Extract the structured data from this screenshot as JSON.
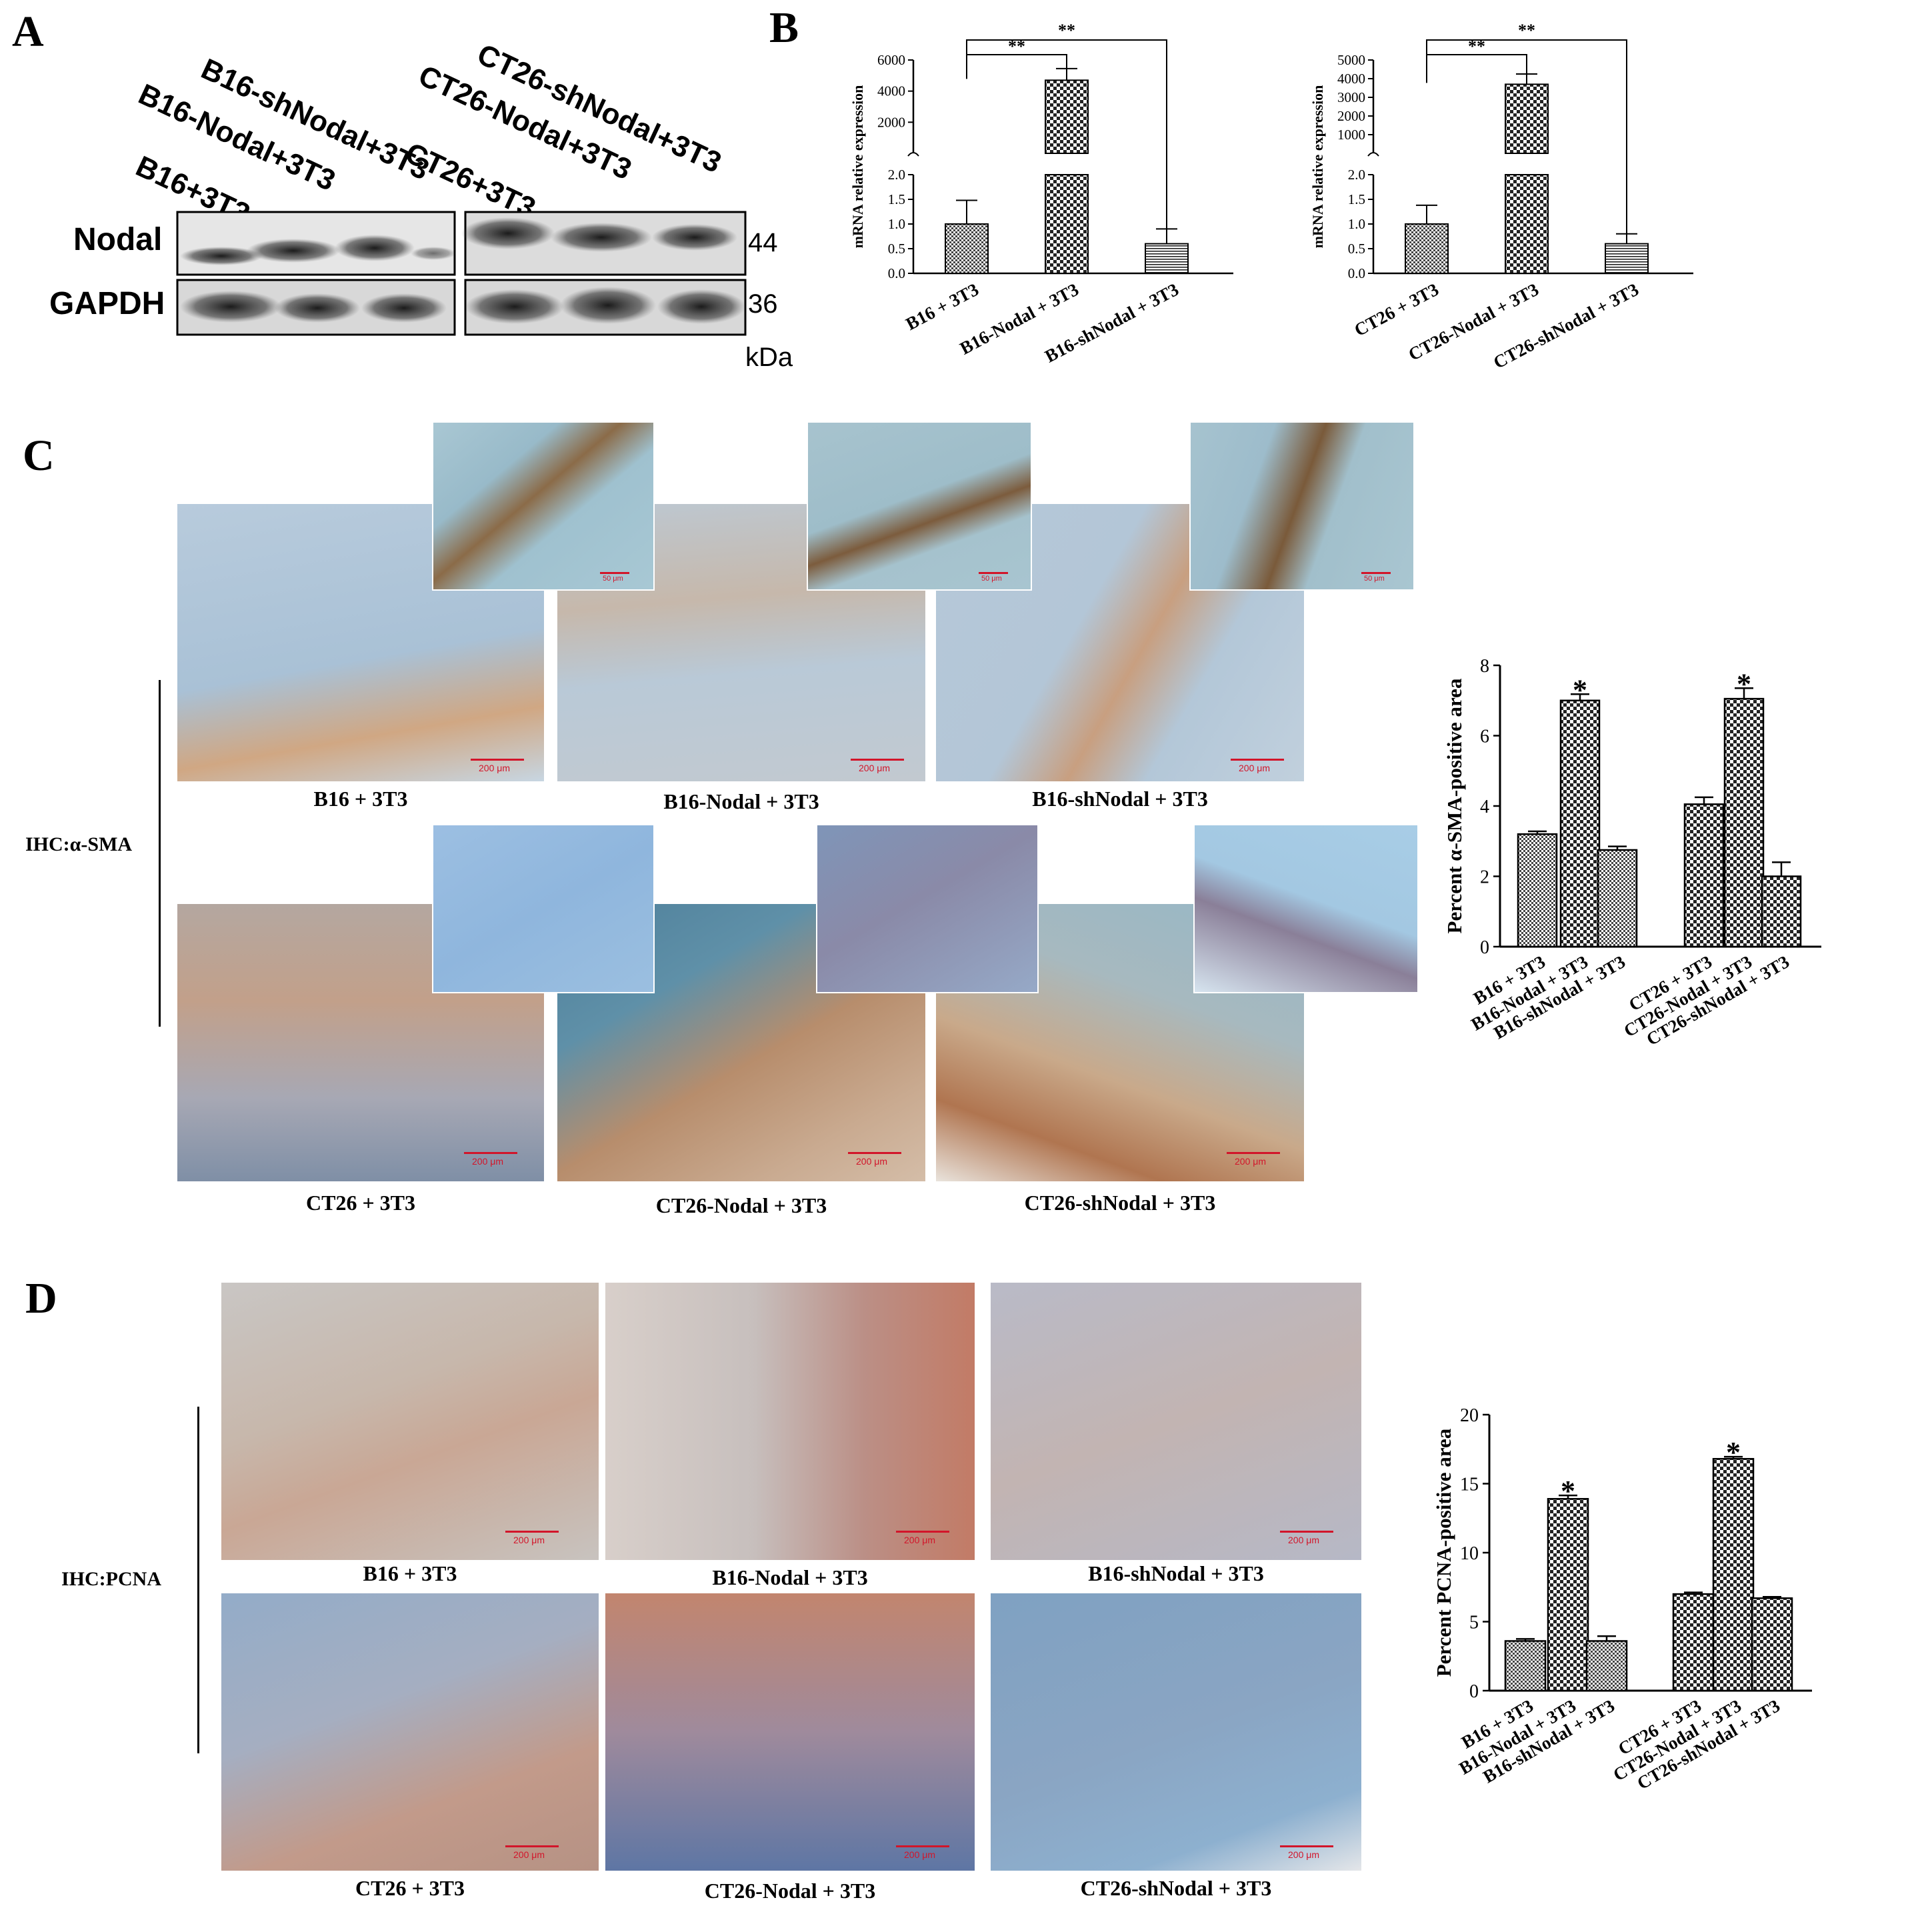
{
  "panels": {
    "a": "A",
    "b": "B",
    "c": "C",
    "d": "D"
  },
  "panel_a": {
    "lanes": [
      "B16+3T3",
      "B16-Nodal+3T3",
      "B16-shNodal+3T3",
      "CT26+3T3",
      "CT26-Nodal+3T3",
      "CT26-shNodal+3T3"
    ],
    "row_labels": {
      "nodal": "Nodal",
      "gapdh": "GAPDH"
    },
    "sizes": {
      "nodal": "44",
      "gapdh": "36"
    },
    "unit": "kDa"
  },
  "chart_data": [
    {
      "type": "bar",
      "panel": "B-left",
      "categories": [
        "B16 + 3T3",
        "B16-Nodal + 3T3",
        "B16-shNodal + 3T3"
      ],
      "values": [
        1.0,
        4700,
        0.6
      ],
      "errors": [
        0.48,
        750,
        0.3
      ],
      "ylabel": "mRNA relative expression",
      "y_lower_ticks": [
        "0.0",
        "0.5",
        "1.0",
        "1.5",
        "2.0"
      ],
      "y_upper_ticks": [
        "2000",
        "4000",
        "6000"
      ],
      "broken_axis": true,
      "significance": [
        "**",
        "**"
      ]
    },
    {
      "type": "bar",
      "panel": "B-right",
      "categories": [
        "CT26 + 3T3",
        "CT26-Nodal + 3T3",
        "CT26-shNodal + 3T3"
      ],
      "values": [
        1.0,
        3700,
        0.6
      ],
      "errors": [
        0.38,
        550,
        0.2
      ],
      "ylabel": "mRNA relative expression",
      "y_lower_ticks": [
        "0.0",
        "0.5",
        "1.0",
        "1.5",
        "2.0"
      ],
      "y_upper_ticks": [
        "1000",
        "2000",
        "3000",
        "4000",
        "5000"
      ],
      "broken_axis": true,
      "significance": [
        "**",
        "**"
      ]
    },
    {
      "type": "bar",
      "panel": "C",
      "categories": [
        "B16 + 3T3",
        "B16-Nodal + 3T3",
        "B16-shNodal + 3T3",
        "CT26 + 3T3",
        "CT26-Nodal + 3T3",
        "CT26-shNodal + 3T3"
      ],
      "values": [
        3.2,
        7.0,
        2.75,
        4.05,
        7.05,
        2.0
      ],
      "errors": [
        0.08,
        0.18,
        0.1,
        0.2,
        0.3,
        0.4
      ],
      "ylabel": "Percent α-SMA-positive area",
      "ylim": [
        0,
        8
      ],
      "yticks": [
        0,
        2,
        4,
        6,
        8
      ],
      "stars": [
        "",
        "*",
        "",
        "",
        "*",
        ""
      ]
    },
    {
      "type": "bar",
      "panel": "D",
      "categories": [
        "B16 + 3T3",
        "B16-Nodal + 3T3",
        "B16-shNodal + 3T3",
        "CT26 + 3T3",
        "CT26-Nodal + 3T3",
        "CT26-shNodal + 3T3"
      ],
      "values": [
        3.6,
        13.9,
        3.6,
        7.0,
        16.8,
        6.7
      ],
      "errors": [
        0.15,
        0.25,
        0.35,
        0.12,
        0.15,
        0.1
      ],
      "ylabel": "Percent PCNA-positive area",
      "ylim": [
        0,
        20
      ],
      "yticks": [
        0,
        5,
        10,
        15,
        20
      ],
      "stars": [
        "",
        "*",
        "",
        "",
        "*",
        ""
      ]
    }
  ],
  "panel_c": {
    "side_label": "IHC:α-SMA",
    "captions": [
      "B16 + 3T3",
      "B16-Nodal + 3T3",
      "B16-shNodal + 3T3",
      "CT26 + 3T3",
      "CT26-Nodal + 3T3",
      "CT26-shNodal + 3T3"
    ],
    "scale_main": "200 μm",
    "scale_inset": "50 μm"
  },
  "panel_d": {
    "side_label": "IHC:PCNA",
    "captions": [
      "B16 + 3T3",
      "B16-Nodal + 3T3",
      "B16-shNodal + 3T3",
      "CT26 + 3T3",
      "CT26-Nodal + 3T3",
      "CT26-shNodal + 3T3"
    ],
    "scale_main": "200 μm"
  },
  "colors": {
    "ihc_blue": "#8fb0cc",
    "ihc_brown": "#b7683d",
    "scale_red": "#d2152a",
    "inset_bg": "#9dc2d4"
  }
}
